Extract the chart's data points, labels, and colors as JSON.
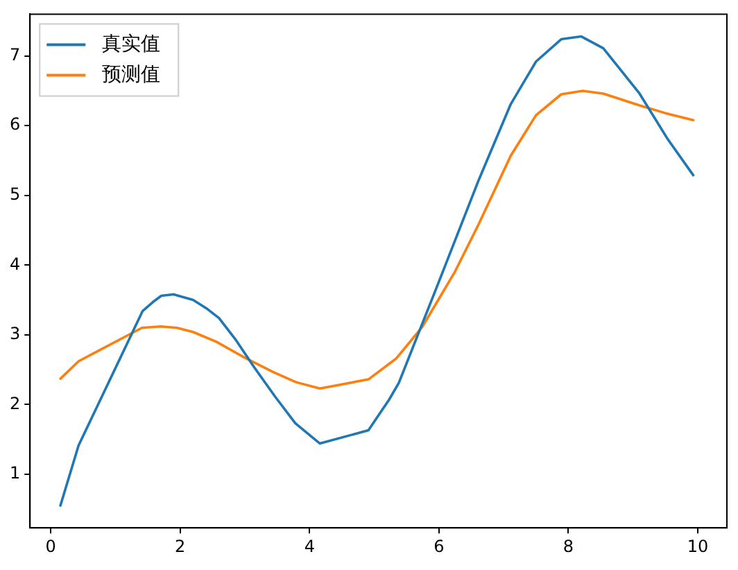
{
  "chart_data": {
    "type": "line",
    "xlim": [
      -0.32,
      10.45
    ],
    "ylim": [
      0.23,
      7.6
    ],
    "xticks": [
      0,
      2,
      4,
      6,
      8,
      10
    ],
    "yticks": [
      1,
      2,
      3,
      4,
      5,
      6,
      7
    ],
    "grid": false,
    "legend": "top left",
    "marker": "none",
    "line_style": "solid",
    "series": [
      {
        "name": "真实值",
        "color": "#1f77b4",
        "x": [
          0.15,
          0.43,
          1.42,
          1.58,
          1.71,
          1.9,
          2.2,
          2.42,
          2.6,
          2.85,
          3.14,
          3.47,
          3.78,
          4.16,
          4.91,
          5.23,
          5.38,
          5.99,
          6.61,
          7.11,
          7.5,
          7.89,
          8.2,
          8.54,
          9.1,
          9.54,
          9.93
        ],
        "values": [
          0.55,
          1.41,
          3.34,
          3.47,
          3.56,
          3.58,
          3.5,
          3.37,
          3.24,
          2.94,
          2.54,
          2.11,
          1.73,
          1.44,
          1.63,
          2.07,
          2.31,
          3.74,
          5.21,
          6.31,
          6.92,
          7.24,
          7.28,
          7.11,
          6.46,
          5.8,
          5.29
        ]
      },
      {
        "name": "预测值",
        "color": "#ff7f0e",
        "x": [
          0.15,
          0.43,
          1.41,
          1.7,
          1.95,
          2.2,
          2.56,
          3.0,
          3.43,
          3.79,
          4.16,
          4.91,
          5.34,
          5.74,
          6.25,
          6.61,
          7.11,
          7.5,
          7.89,
          8.22,
          8.54,
          9.1,
          9.5,
          9.93
        ],
        "values": [
          2.37,
          2.62,
          3.1,
          3.12,
          3.1,
          3.04,
          2.9,
          2.67,
          2.47,
          2.32,
          2.23,
          2.36,
          2.66,
          3.11,
          3.91,
          4.58,
          5.57,
          6.15,
          6.45,
          6.5,
          6.46,
          6.29,
          6.18,
          6.08
        ]
      }
    ]
  }
}
